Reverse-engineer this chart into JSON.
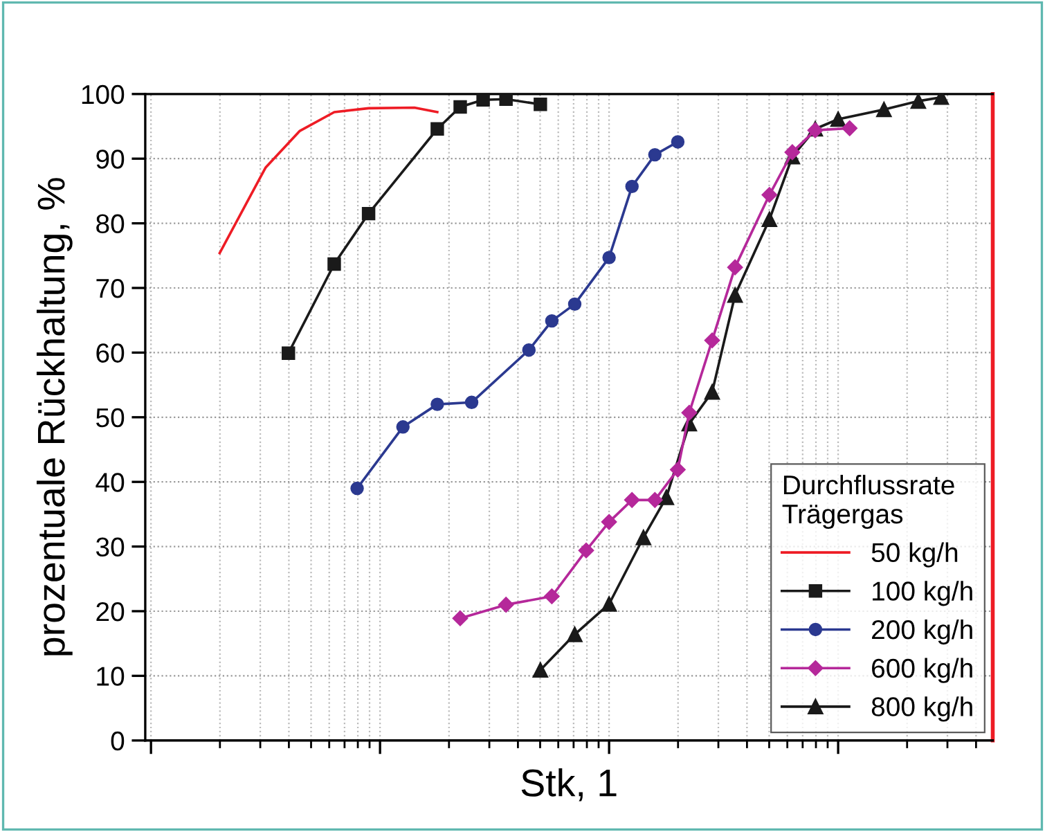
{
  "chart_data": {
    "type": "line",
    "xlabel": "Stk, 1",
    "ylabel": "prozentuale Rückhaltung, %",
    "legend_title": "Durchflussrate\nTrägergas",
    "categories": [
      null,
      null,
      null,
      null,
      null,
      null,
      null,
      null,
      null,
      null,
      null,
      null,
      null,
      null,
      null,
      null,
      null,
      null,
      null,
      null,
      null,
      null,
      null,
      null,
      null,
      null,
      null,
      null,
      null,
      null,
      null,
      null,
      null,
      null,
      null,
      null,
      null,
      null,
      null,
      null,
      null,
      null,
      null,
      null,
      null,
      null,
      null,
      null,
      null,
      null,
      null,
      null,
      null,
      null,
      null,
      null,
      null,
      null,
      null,
      null,
      null,
      null,
      null,
      null,
      null,
      null,
      null,
      null,
      null,
      null,
      null,
      null,
      null,
      null
    ],
    "ylim": [
      0,
      100
    ],
    "yticks": [
      0,
      10,
      20,
      30,
      40,
      50,
      60,
      70,
      80,
      90,
      100
    ],
    "grid": true,
    "legend": "bottom right",
    "series": [
      {
        "name": "50 kg/h",
        "color": "#ee1c25",
        "marker": "none",
        "values": [
          null,
          null,
          null,
          null,
          null,
          null,
          75.4,
          null,
          null,
          null,
          88.6,
          null,
          null,
          94.3,
          null,
          null,
          97.2,
          null,
          null,
          97.8,
          null,
          null,
          null,
          97.9,
          null,
          97.2,
          null,
          null,
          null,
          null,
          null,
          null,
          null,
          null,
          null,
          null,
          null,
          null,
          null,
          null,
          null,
          null,
          null,
          null,
          null,
          null,
          null,
          null,
          null,
          null,
          null,
          null,
          null,
          null,
          null,
          null,
          null,
          null,
          null,
          null,
          null,
          null,
          null,
          null,
          null,
          null,
          null,
          null,
          null,
          null,
          null,
          null,
          null,
          null
        ]
      },
      {
        "name": "100 kg/h",
        "color": "#1a1a1a",
        "marker": "square",
        "values": [
          null,
          null,
          null,
          null,
          null,
          null,
          null,
          null,
          null,
          null,
          null,
          null,
          59.9,
          null,
          null,
          null,
          73.7,
          null,
          null,
          81.5,
          null,
          null,
          null,
          null,
          null,
          94.6,
          null,
          98.0,
          null,
          99.1,
          null,
          99.2,
          null,
          null,
          98.4,
          null,
          null,
          null,
          null,
          null,
          null,
          null,
          null,
          null,
          null,
          null,
          null,
          null,
          null,
          null,
          null,
          null,
          null,
          null,
          null,
          null,
          null,
          null,
          null,
          null,
          null,
          null,
          null,
          null,
          null,
          null,
          null,
          null,
          null,
          null,
          null,
          null,
          null,
          null
        ]
      },
      {
        "name": "200 kg/h",
        "color": "#2b3990",
        "marker": "circle",
        "values": [
          null,
          null,
          null,
          null,
          null,
          null,
          null,
          null,
          null,
          null,
          null,
          null,
          null,
          null,
          null,
          null,
          null,
          null,
          39.0,
          null,
          null,
          null,
          48.5,
          null,
          null,
          52.0,
          null,
          null,
          52.3,
          null,
          null,
          null,
          null,
          60.4,
          null,
          64.9,
          null,
          67.5,
          null,
          null,
          74.7,
          null,
          85.7,
          null,
          90.6,
          null,
          92.6,
          null,
          null,
          null,
          null,
          null,
          null,
          null,
          null,
          null,
          null,
          null,
          null,
          null,
          null,
          null,
          null,
          null,
          null,
          null,
          null,
          null,
          null,
          null,
          null,
          null,
          null,
          null
        ]
      },
      {
        "name": "600 kg/h",
        "color": "#b5289a",
        "marker": "diamond",
        "values": [
          null,
          null,
          null,
          null,
          null,
          null,
          null,
          null,
          null,
          null,
          null,
          null,
          null,
          null,
          null,
          null,
          null,
          null,
          null,
          null,
          null,
          null,
          null,
          null,
          null,
          null,
          null,
          18.9,
          null,
          null,
          null,
          21.0,
          null,
          null,
          null,
          22.3,
          null,
          null,
          29.4,
          null,
          33.8,
          null,
          37.2,
          null,
          37.2,
          null,
          41.9,
          50.7,
          null,
          61.9,
          null,
          73.2,
          null,
          null,
          84.4,
          null,
          91.0,
          null,
          94.4,
          null,
          null,
          94.7,
          null,
          null,
          null,
          null,
          null,
          null,
          null,
          null,
          null,
          null,
          null,
          null
        ]
      },
      {
        "name": "800 kg/h",
        "color": "#1a1a1a",
        "marker": "triangle",
        "values": [
          null,
          null,
          null,
          null,
          null,
          null,
          null,
          null,
          null,
          null,
          null,
          null,
          null,
          null,
          null,
          null,
          null,
          null,
          null,
          null,
          null,
          null,
          null,
          null,
          null,
          null,
          null,
          null,
          null,
          null,
          null,
          null,
          null,
          null,
          10.9,
          null,
          null,
          16.4,
          null,
          null,
          21.1,
          null,
          null,
          31.4,
          null,
          37.6,
          null,
          49.0,
          null,
          53.9,
          null,
          68.9,
          null,
          null,
          80.6,
          null,
          90.3,
          null,
          94.6,
          null,
          96.1,
          null,
          null,
          null,
          97.6,
          null,
          null,
          98.9,
          null,
          99.5,
          null,
          null,
          null,
          null
        ]
      }
    ]
  }
}
